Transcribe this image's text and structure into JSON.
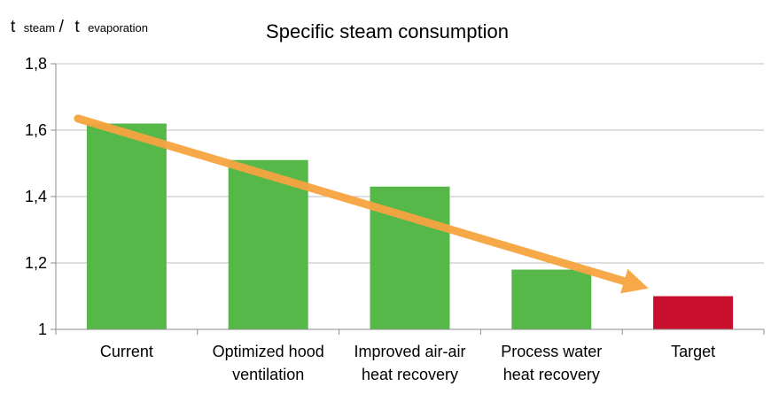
{
  "chart_data": {
    "type": "bar",
    "title": "Specific steam consumption",
    "ylabel": {
      "t1": "t",
      "sub1": "steam",
      "slash": "/",
      "t2": "t",
      "sub2": "evaporation"
    },
    "xlabel": "",
    "categories": [
      [
        "Current"
      ],
      [
        "Optimized hood",
        "ventilation"
      ],
      [
        "Improved air-air",
        "heat recovery"
      ],
      [
        "Process water",
        "heat recovery"
      ],
      [
        "Target"
      ]
    ],
    "values": [
      1.62,
      1.51,
      1.43,
      1.18,
      1.1
    ],
    "bar_colors": [
      "#55b848",
      "#55b848",
      "#55b848",
      "#55b848",
      "#c8102e"
    ],
    "ylim": [
      1.0,
      1.8
    ],
    "yticks": [
      1.0,
      1.2,
      1.4,
      1.6,
      1.8
    ],
    "ytick_labels": [
      "1",
      "1,2",
      "1,4",
      "1,6",
      "1,8"
    ],
    "grid": true,
    "legend": "none",
    "trend_arrow": {
      "from": {
        "category_index": 0,
        "y": 1.635
      },
      "to": {
        "category_index": 4,
        "y": 1.135
      },
      "color": "#f7a541"
    }
  }
}
